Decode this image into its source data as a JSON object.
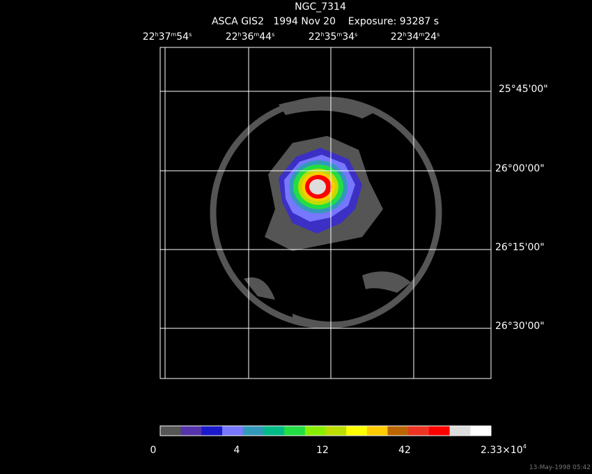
{
  "header": {
    "title": "NGC_7314",
    "subtitle": "ASCA GIS2   1994 Nov 20    Exposure: 93287 s"
  },
  "ra_labels": [
    [
      "22",
      "h",
      "37",
      "m",
      "54",
      "s"
    ],
    [
      "22",
      "h",
      "36",
      "m",
      "44",
      "s"
    ],
    [
      "22",
      "h",
      "35",
      "m",
      "34",
      "s"
    ],
    [
      "22",
      "h",
      "34",
      "m",
      "24",
      "s"
    ]
  ],
  "dec_labels": [
    "25°45'00\"",
    "26°00'00\"",
    "26°15'00\"",
    "26°30'00\""
  ],
  "colorbar": {
    "colors": [
      "#555555",
      "#5533aa",
      "#1a1acc",
      "#7777ff",
      "#3399bb",
      "#00bb88",
      "#22dd44",
      "#88ee00",
      "#bbdd00",
      "#ffff00",
      "#ffcc00",
      "#bb6600",
      "#ee3322",
      "#ff0000",
      "#dddddd",
      "#ffffff"
    ],
    "labels": [
      "0",
      "4",
      "12",
      "42",
      [
        "2.33×10",
        "4"
      ]
    ]
  },
  "timestamp": "13-May-1998 05:42"
}
